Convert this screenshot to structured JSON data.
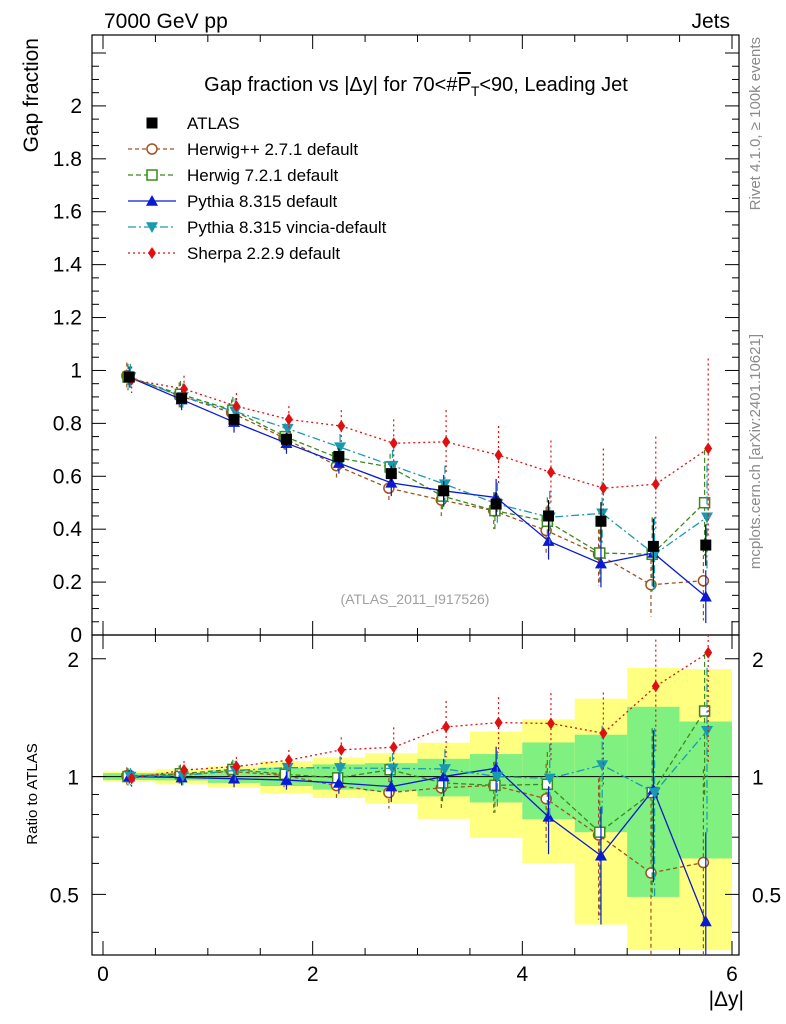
{
  "header": {
    "left": "7000 GeV pp",
    "right": "Jets",
    "side_top": "Rivet 4.1.0, ≥ 100k events",
    "side_bottom": "mcplots.cern.ch [arXiv:2401.10621]"
  },
  "chart_data": {
    "type": "scatter",
    "title": "Gap fraction vs |Δy| for 70<#P̅T<90, Leading Jet",
    "title_parts": {
      "prefix": "Gap fraction vs |Δy| for 70<#",
      "pvar": "P",
      "psub": "T",
      "suffix": "<90, Leading Jet"
    },
    "watermark": "(ATLAS_2011_I917526)",
    "xlabel": "|Δy|",
    "ylabel": "Gap fraction",
    "ratio_ylabel": "Ratio to ATLAS",
    "xlim": [
      -0.15,
      6.15
    ],
    "ylim": [
      0,
      2.2
    ],
    "ratio_ylim": [
      0.35,
      2.3
    ],
    "x_ticks": [
      "0",
      "2",
      "4",
      "6"
    ],
    "y_ticks": [
      "0",
      "0.2",
      "0.4",
      "0.6",
      "0.8",
      "1",
      "1.2",
      "1.4",
      "1.6",
      "1.8",
      "2"
    ],
    "ratio_ticks": [
      "0.5",
      "1",
      "2"
    ],
    "x": [
      0.25,
      0.75,
      1.25,
      1.75,
      2.25,
      2.75,
      3.25,
      3.75,
      4.25,
      4.75,
      5.25,
      5.75
    ],
    "data": {
      "name": "ATLAS",
      "values": [
        0.975,
        0.895,
        0.815,
        0.74,
        0.675,
        0.61,
        0.545,
        0.495,
        0.45,
        0.43,
        0.335,
        0.34
      ],
      "band_inner": [
        0.02,
        0.02,
        0.03,
        0.04,
        0.05,
        0.05,
        0.06,
        0.07,
        0.1,
        0.12,
        0.17,
        0.13
      ],
      "band_outer": [
        0.03,
        0.04,
        0.05,
        0.07,
        0.08,
        0.09,
        0.12,
        0.15,
        0.18,
        0.25,
        0.3,
        0.3
      ]
    },
    "series": [
      {
        "name": "Herwig++ 2.7.1 default",
        "color": "#a0521e",
        "marker": "circle",
        "dash": "4,3",
        "values": [
          0.98,
          0.905,
          0.84,
          0.745,
          0.64,
          0.555,
          0.51,
          0.47,
          0.395,
          0.305,
          0.19,
          0.205
        ],
        "errors": [
          0.05,
          0.05,
          0.05,
          0.05,
          0.05,
          0.05,
          0.06,
          0.07,
          0.09,
          0.12,
          0.12,
          0.15
        ]
      },
      {
        "name": "Herwig 7.2.1 default",
        "color": "#3a8a1a",
        "marker": "square",
        "dash": "5,3",
        "values": [
          0.975,
          0.91,
          0.85,
          0.75,
          0.67,
          0.635,
          0.525,
          0.47,
          0.43,
          0.31,
          0.305,
          0.5
        ],
        "errors": [
          0.05,
          0.05,
          0.05,
          0.05,
          0.05,
          0.05,
          0.06,
          0.07,
          0.09,
          0.12,
          0.14,
          0.2
        ]
      },
      {
        "name": "Pythia 8.315 default",
        "color": "#0a1ad0",
        "marker": "triangle-up",
        "dash": "",
        "values": [
          0.975,
          0.89,
          0.805,
          0.725,
          0.65,
          0.575,
          0.545,
          0.52,
          0.355,
          0.27,
          0.31,
          0.145
        ],
        "errors": [
          0.04,
          0.04,
          0.04,
          0.04,
          0.04,
          0.05,
          0.06,
          0.07,
          0.07,
          0.09,
          0.13,
          0.1
        ]
      },
      {
        "name": "Pythia 8.315 vincia-default",
        "color": "#1a9ab0",
        "marker": "triangle-down",
        "dash": "8,3,2,3",
        "values": [
          0.975,
          0.9,
          0.845,
          0.78,
          0.71,
          0.64,
          0.57,
          0.495,
          0.445,
          0.46,
          0.305,
          0.445
        ],
        "errors": [
          0.05,
          0.05,
          0.05,
          0.05,
          0.05,
          0.06,
          0.07,
          0.08,
          0.1,
          0.12,
          0.14,
          0.2
        ]
      },
      {
        "name": "Sherpa 2.2.9 default",
        "color": "#e01010",
        "marker": "diamond",
        "dash": "2,3",
        "values": [
          0.965,
          0.93,
          0.865,
          0.815,
          0.79,
          0.725,
          0.73,
          0.68,
          0.615,
          0.555,
          0.57,
          0.705
        ],
        "errors": [
          0.05,
          0.05,
          0.05,
          0.05,
          0.06,
          0.09,
          0.12,
          0.11,
          0.12,
          0.15,
          0.18,
          0.34
        ]
      }
    ]
  }
}
